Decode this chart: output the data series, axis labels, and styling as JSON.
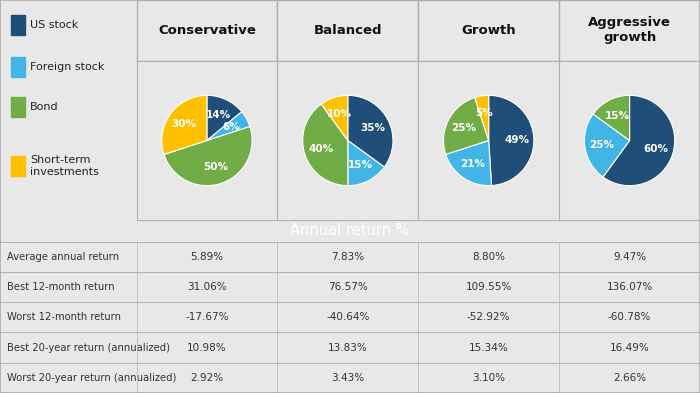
{
  "legend_labels": [
    "US stock",
    "Foreign stock",
    "Bond",
    "Short-term\ninvestments"
  ],
  "legend_colors": [
    "#1f4e79",
    "#41b6e6",
    "#70ad47",
    "#ffc000"
  ],
  "columns": [
    "Conservative",
    "Balanced",
    "Growth",
    "Aggressive\ngrowth"
  ],
  "pie_data": [
    [
      14,
      6,
      50,
      30
    ],
    [
      35,
      15,
      40,
      10
    ],
    [
      49,
      21,
      25,
      5
    ],
    [
      60,
      25,
      15,
      0
    ]
  ],
  "pie_labels": [
    [
      "14%",
      "6%",
      "50%",
      "30%"
    ],
    [
      "35%",
      "15%",
      "40%",
      "10%"
    ],
    [
      "49%",
      "21%",
      "25%",
      "5%"
    ],
    [
      "60%",
      "25%",
      "15%",
      ""
    ]
  ],
  "colors": [
    "#1f4e79",
    "#41b6e6",
    "#70ad47",
    "#ffc000"
  ],
  "section_header": "Annual return %",
  "row_labels": [
    "Average annual return",
    "Best 12-month return",
    "Worst 12-month return",
    "Best 20-year return (annualized)",
    "Worst 20-year return (annualized)"
  ],
  "table_data": [
    [
      "5.89%",
      "7.83%",
      "8.80%",
      "9.47%"
    ],
    [
      "31.06%",
      "76.57%",
      "109.55%",
      "136.07%"
    ],
    [
      "-17.67%",
      "-40.64%",
      "-52.92%",
      "-60.78%"
    ],
    [
      "10.98%",
      "13.83%",
      "15.34%",
      "16.49%"
    ],
    [
      "2.92%",
      "3.43%",
      "3.10%",
      "2.66%"
    ]
  ],
  "header_bg": "#737373",
  "header_text_color": "#ffffff",
  "border_color": "#b0b0b0",
  "top_bg": "#e8e8e8",
  "cell_bg": "#f0f0f0"
}
